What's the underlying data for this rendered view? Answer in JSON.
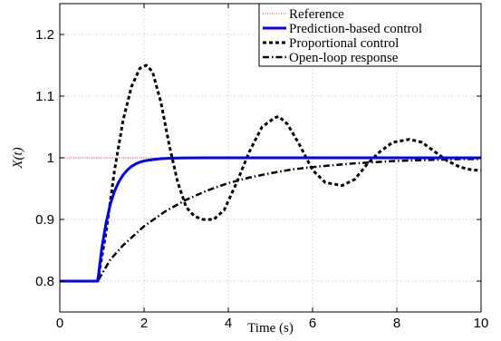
{
  "chart_data": {
    "type": "line",
    "xlabel": "Time (s)",
    "ylabel": "X(t)",
    "xlim": [
      0,
      10
    ],
    "ylim": [
      0.75,
      1.25
    ],
    "xticks": [
      0,
      2,
      4,
      6,
      8,
      10
    ],
    "yticks": [
      0.8,
      0.9,
      1,
      1.1,
      1.2
    ],
    "ytick_labels": [
      "0.8",
      "0.9",
      "1",
      "1.1",
      "1.2"
    ],
    "grid": true,
    "legend_position": "top-right",
    "series": [
      {
        "name": "Reference",
        "style": "dotted",
        "color": "#f08080",
        "x": [
          0,
          10
        ],
        "y": [
          1.0,
          1.0
        ]
      },
      {
        "name": "Prediction-based control",
        "style": "solid",
        "color": "#0000ff",
        "x": [
          0,
          0.9,
          1.0,
          1.1,
          1.2,
          1.3,
          1.4,
          1.5,
          1.6,
          1.7,
          1.8,
          1.9,
          2.0,
          2.2,
          2.4,
          2.6,
          2.8,
          3.0,
          3.5,
          4.0,
          10.0
        ],
        "y": [
          0.8,
          0.8,
          0.855,
          0.895,
          0.925,
          0.946,
          0.961,
          0.972,
          0.98,
          0.986,
          0.99,
          0.993,
          0.995,
          0.997,
          0.9985,
          0.9992,
          0.9996,
          0.9998,
          1.0,
          1.0,
          1.0
        ]
      },
      {
        "name": "Proportional control",
        "style": "dashed",
        "color": "#000000",
        "x": [
          0,
          0.9,
          1.1,
          1.3,
          1.5,
          1.7,
          1.9,
          2.05,
          2.2,
          2.4,
          2.6,
          2.8,
          3.0,
          3.2,
          3.4,
          3.65,
          3.9,
          4.2,
          4.5,
          4.8,
          5.1,
          5.2,
          5.4,
          5.7,
          6.0,
          6.3,
          6.7,
          7.0,
          7.3,
          7.6,
          7.9,
          8.3,
          8.6,
          8.9,
          9.2,
          9.5,
          9.8,
          10.0
        ],
        "y": [
          0.8,
          0.8,
          0.88,
          0.98,
          1.06,
          1.115,
          1.145,
          1.15,
          1.14,
          1.09,
          1.02,
          0.96,
          0.92,
          0.905,
          0.9,
          0.9,
          0.915,
          0.96,
          1.01,
          1.05,
          1.065,
          1.067,
          1.055,
          1.02,
          0.98,
          0.96,
          0.955,
          0.965,
          0.99,
          1.01,
          1.025,
          1.03,
          1.025,
          1.01,
          0.995,
          0.985,
          0.98,
          0.98
        ]
      },
      {
        "name": "Open-loop response",
        "style": "dashdot",
        "color": "#000000",
        "x": [
          0,
          0.9,
          1.2,
          1.5,
          2.0,
          2.5,
          3.0,
          3.5,
          4.0,
          4.5,
          5.0,
          5.5,
          6.0,
          6.5,
          7.0,
          7.5,
          8.0,
          8.5,
          9.0,
          9.5,
          10.0
        ],
        "y": [
          0.8,
          0.8,
          0.835,
          0.858,
          0.889,
          0.913,
          0.932,
          0.947,
          0.959,
          0.968,
          0.975,
          0.981,
          0.985,
          0.988,
          0.991,
          0.993,
          0.995,
          0.996,
          0.997,
          0.998,
          0.998
        ]
      }
    ]
  }
}
